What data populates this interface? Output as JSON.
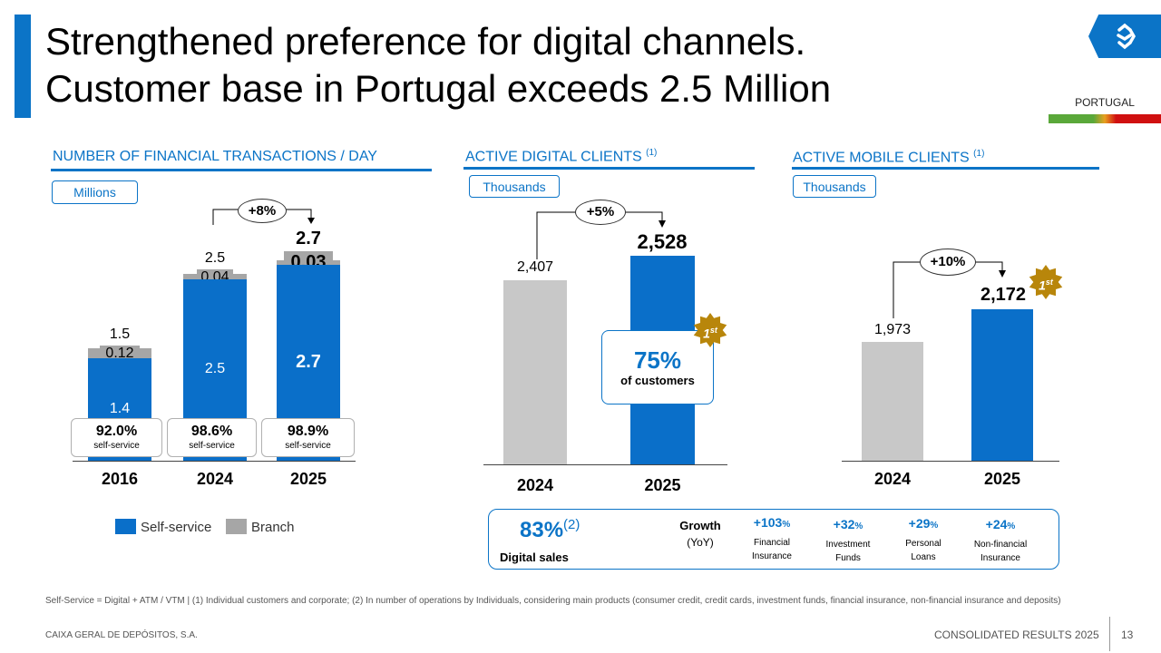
{
  "header": {
    "title_line1": "Strengthened preference for digital channels.",
    "title_line2": "Customer base in Portugal exceeds 2.5 Million",
    "country": "PORTUGAL"
  },
  "transactions": {
    "title": "NUMBER OF FINANCIAL TRANSACTIONS / DAY",
    "unit": "Millions",
    "growth": "+8%",
    "legend_self": "Self-service",
    "legend_branch": "Branch",
    "bars": [
      {
        "year": "2016",
        "total": "1.5",
        "branch": "0.12",
        "self": "1.4",
        "pct": "92.0%",
        "pct_label": "self-service"
      },
      {
        "year": "2024",
        "total": "2.5",
        "branch": "0.04",
        "self": "2.5",
        "pct": "98.6%",
        "pct_label": "self-service"
      },
      {
        "year": "2025",
        "total": "2.7",
        "branch": "0.03",
        "self": "2.7",
        "pct": "98.9%",
        "pct_label": "self-service"
      }
    ]
  },
  "digital": {
    "title": "ACTIVE DIGITAL CLIENTS",
    "sup": "(1)",
    "unit": "Thousands",
    "growth": "+5%",
    "badge": "1",
    "badge_sup": "st",
    "bars": [
      {
        "year": "2024",
        "value": "2,407"
      },
      {
        "year": "2025",
        "value": "2,528"
      }
    ],
    "callout_pct": "75%",
    "callout_label": "of customers"
  },
  "mobile": {
    "title": "ACTIVE MOBILE CLIENTS",
    "sup": "(1)",
    "unit": "Thousands",
    "growth": "+10%",
    "badge": "1",
    "badge_sup": "st",
    "bars": [
      {
        "year": "2024",
        "value": "1,973"
      },
      {
        "year": "2025",
        "value": "2,172"
      }
    ]
  },
  "sales": {
    "pct": "83%",
    "pct_sup": "(2)",
    "label": "Digital sales",
    "growth_label": "Growth",
    "growth_sub": "(YoY)",
    "items": [
      {
        "value": "+103",
        "unit": "%",
        "line1": "Financial",
        "line2": "Insurance"
      },
      {
        "value": "+32",
        "unit": "%",
        "line1": "Investment",
        "line2": "Funds"
      },
      {
        "value": "+29",
        "unit": "%",
        "line1": "Personal",
        "line2": "Loans"
      },
      {
        "value": "+24",
        "unit": "%",
        "line1": "Non-financial",
        "line2": "Insurance"
      }
    ]
  },
  "footnote": "Self-Service = Digital + ATM / VTM | (1) Individual customers and corporate; (2) In number of operations by Individuals, considering main products (consumer credit, credit cards, investment funds, financial insurance, non-financial insurance and deposits)",
  "footer": {
    "company": "CAIXA GERAL DE DEPÓSITOS, S.A.",
    "report": "CONSOLIDATED RESULTS 2025",
    "page": "13"
  },
  "colors": {
    "accent": "#0b74c7",
    "bar_blue": "#0a6fc9",
    "bar_grey": "#a6a6a6",
    "bar_light": "#c8c8c8",
    "badge_gold": "#b8860b"
  }
}
